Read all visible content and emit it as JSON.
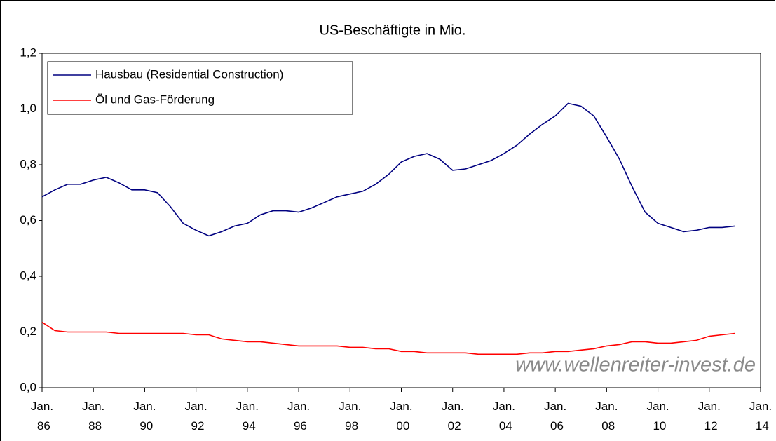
{
  "chart_data": {
    "type": "line",
    "title": "US-Beschäftigte in Mio.",
    "x": [
      1986,
      1986.5,
      1987,
      1987.5,
      1988,
      1988.5,
      1989,
      1989.5,
      1990,
      1990.5,
      1991,
      1991.5,
      1992,
      1992.5,
      1993,
      1993.5,
      1994,
      1994.5,
      1995,
      1995.5,
      1996,
      1996.5,
      1997,
      1997.5,
      1998,
      1998.5,
      1999,
      1999.5,
      2000,
      2000.5,
      2001,
      2001.5,
      2002,
      2002.5,
      2003,
      2003.5,
      2004,
      2004.5,
      2005,
      2005.5,
      2006,
      2006.5,
      2007,
      2007.5,
      2008,
      2008.5,
      2009,
      2009.5,
      2010,
      2010.5,
      2011,
      2011.5,
      2012,
      2012.5,
      2013
    ],
    "series": [
      {
        "name": "Hausbau (Residential Construction)",
        "color": "#000080",
        "values": [
          0.685,
          0.71,
          0.73,
          0.73,
          0.745,
          0.755,
          0.735,
          0.71,
          0.71,
          0.7,
          0.65,
          0.59,
          0.565,
          0.545,
          0.56,
          0.58,
          0.59,
          0.62,
          0.635,
          0.635,
          0.63,
          0.645,
          0.665,
          0.685,
          0.695,
          0.705,
          0.73,
          0.765,
          0.81,
          0.83,
          0.84,
          0.82,
          0.78,
          0.785,
          0.8,
          0.815,
          0.84,
          0.87,
          0.91,
          0.945,
          0.975,
          1.02,
          1.01,
          0.975,
          0.9,
          0.82,
          0.72,
          0.63,
          0.59,
          0.575,
          0.56,
          0.565,
          0.575,
          0.575,
          0.58
        ]
      },
      {
        "name": "Öl und Gas-Förderung",
        "color": "#ff0000",
        "values": [
          0.235,
          0.205,
          0.2,
          0.2,
          0.2,
          0.2,
          0.195,
          0.195,
          0.195,
          0.195,
          0.195,
          0.195,
          0.19,
          0.19,
          0.175,
          0.17,
          0.165,
          0.165,
          0.16,
          0.155,
          0.15,
          0.15,
          0.15,
          0.15,
          0.145,
          0.145,
          0.14,
          0.14,
          0.13,
          0.13,
          0.125,
          0.125,
          0.125,
          0.125,
          0.12,
          0.12,
          0.12,
          0.12,
          0.125,
          0.125,
          0.13,
          0.13,
          0.135,
          0.14,
          0.15,
          0.155,
          0.165,
          0.165,
          0.16,
          0.16,
          0.165,
          0.17,
          0.185,
          0.19,
          0.195
        ]
      }
    ],
    "xlim": [
      1986,
      2014
    ],
    "xticks": [
      {
        "value": 1986,
        "label": "Jan. 86"
      },
      {
        "value": 1988,
        "label": "Jan. 88"
      },
      {
        "value": 1990,
        "label": "Jan. 90"
      },
      {
        "value": 1992,
        "label": "Jan. 92"
      },
      {
        "value": 1994,
        "label": "Jan. 94"
      },
      {
        "value": 1996,
        "label": "Jan. 96"
      },
      {
        "value": 1998,
        "label": "Jan. 98"
      },
      {
        "value": 2000,
        "label": "Jan. 00"
      },
      {
        "value": 2002,
        "label": "Jan. 02"
      },
      {
        "value": 2004,
        "label": "Jan. 04"
      },
      {
        "value": 2006,
        "label": "Jan. 06"
      },
      {
        "value": 2008,
        "label": "Jan. 08"
      },
      {
        "value": 2010,
        "label": "Jan. 10"
      },
      {
        "value": 2012,
        "label": "Jan. 12"
      },
      {
        "value": 2014,
        "label": "Jan. 14"
      }
    ],
    "ylim": [
      0,
      1.2
    ],
    "yticks": [
      {
        "value": 0,
        "label": "0,0"
      },
      {
        "value": 0.2,
        "label": "0,2"
      },
      {
        "value": 0.4,
        "label": "0,4"
      },
      {
        "value": 0.6,
        "label": "0,6"
      },
      {
        "value": 0.8,
        "label": "0,8"
      },
      {
        "value": 1.0,
        "label": "1,0"
      },
      {
        "value": 1.2,
        "label": "1,2"
      }
    ],
    "legend": "upper left",
    "annotation": "www.wellenreiter-invest.de"
  }
}
